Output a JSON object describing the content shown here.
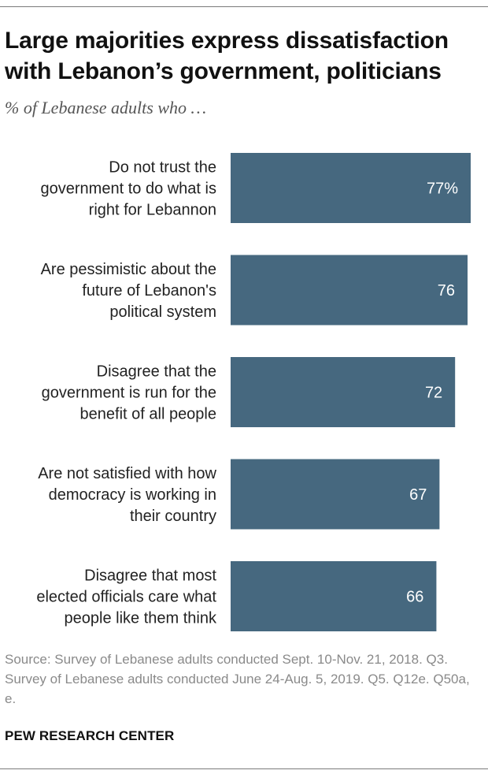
{
  "title": "Large majorities express dissatisfaction with Lebanon’s government, politicians",
  "subtitle": "% of Lebanese adults who …",
  "chart_data": {
    "type": "bar",
    "orientation": "horizontal",
    "categories": [
      [
        "Do not trust the",
        "government to do what is",
        "right for Lebannon"
      ],
      [
        "Are pessimistic about the",
        "future of Lebanon's",
        "political system"
      ],
      [
        "Disagree that the",
        "government is run for the",
        "benefit of all people"
      ],
      [
        "Are not satisfied with how",
        "democracy is working in",
        "their country"
      ],
      [
        "Disagree that most",
        "elected officials care what",
        "people like them think"
      ]
    ],
    "values": [
      77,
      76,
      72,
      67,
      66
    ],
    "value_labels": [
      "77%",
      "76",
      "72",
      "67",
      "66"
    ],
    "bar_color": "#46687f",
    "xlim": [
      0,
      80
    ],
    "grid": false,
    "legend": "none"
  },
  "source": "Source: Survey of Lebanese adults conducted Sept. 10-Nov. 21, 2018. Q3. Survey of Lebanese adults conducted June 24-Aug. 5, 2019. Q5. Q12e. Q50a, e.",
  "brand": "PEW RESEARCH CENTER"
}
